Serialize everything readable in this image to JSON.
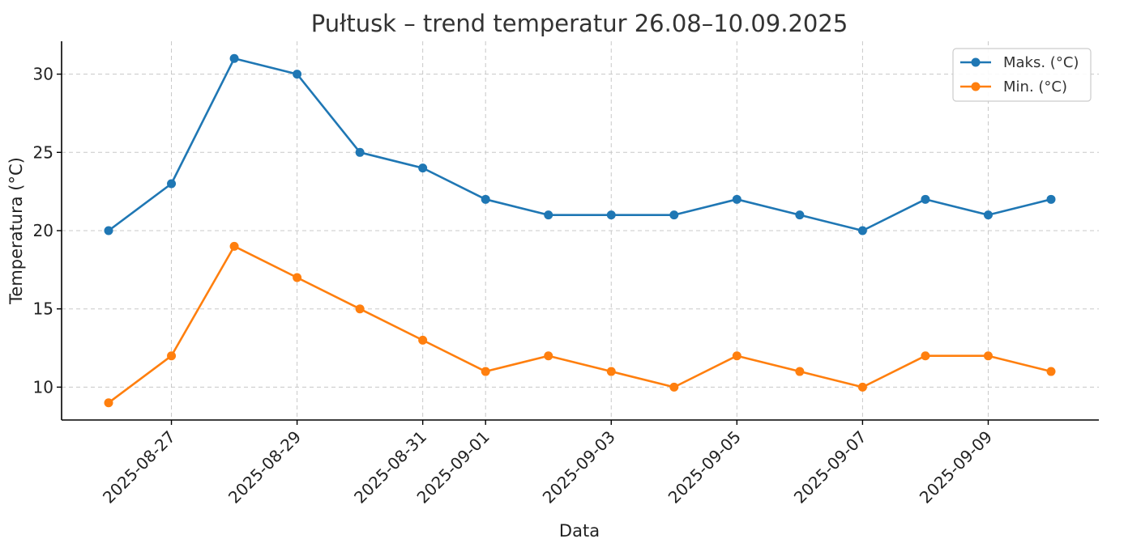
{
  "chart_data": {
    "type": "line",
    "title": "Pułtusk – trend temperatur 26.08–10.09.2025",
    "xlabel": "Data",
    "ylabel": "Temperatura (°C)",
    "x": [
      "2025-08-26",
      "2025-08-27",
      "2025-08-28",
      "2025-08-29",
      "2025-08-30",
      "2025-08-31",
      "2025-09-01",
      "2025-09-02",
      "2025-09-03",
      "2025-09-04",
      "2025-09-05",
      "2025-09-06",
      "2025-09-07",
      "2025-09-08",
      "2025-09-09",
      "2025-09-10"
    ],
    "x_tick_labels": [
      "2025-08-27",
      "2025-08-29",
      "2025-08-31",
      "2025-09-01",
      "2025-09-03",
      "2025-09-05",
      "2025-09-07",
      "2025-09-09"
    ],
    "y_ticks": [
      10,
      15,
      20,
      25,
      30
    ],
    "ylim": [
      7.9,
      32.1
    ],
    "grid": true,
    "legend_position": "top-right",
    "series": [
      {
        "name": "Maks. (°C)",
        "color": "#1f77b4",
        "values": [
          20,
          23,
          31,
          30,
          25,
          24,
          22,
          21,
          21,
          21,
          22,
          21,
          20,
          22,
          21,
          22
        ]
      },
      {
        "name": "Min. (°C)",
        "color": "#ff7f0e",
        "values": [
          9,
          12,
          19,
          17,
          15,
          13,
          11,
          12,
          11,
          10,
          12,
          11,
          10,
          12,
          12,
          11
        ]
      }
    ]
  }
}
